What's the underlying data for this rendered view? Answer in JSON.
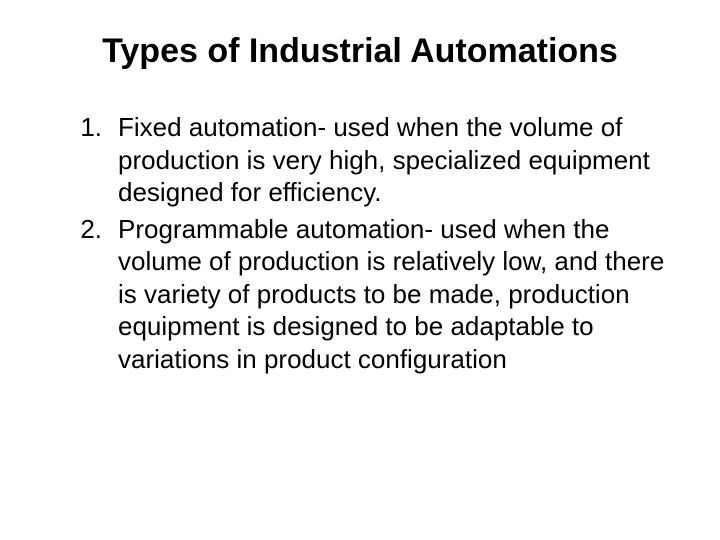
{
  "title": "Types of Industrial Automations",
  "items": [
    {
      "num": "1.",
      "term": "Fixed automation-",
      "desc": " used when the volume of production is very high, specialized equipment designed for efficiency."
    },
    {
      "num": "2.",
      "term": "Programmable automation-",
      "desc": " used when the volume of production is relatively low, and there is variety of products to be made, production equipment is designed to be adaptable to variations in product configuration"
    }
  ],
  "colors": {
    "background": "#ffffff",
    "text": "#000000"
  },
  "typography": {
    "title_fontsize": 34,
    "body_fontsize": 26,
    "title_weight": "bold",
    "font_family": "Arial"
  }
}
